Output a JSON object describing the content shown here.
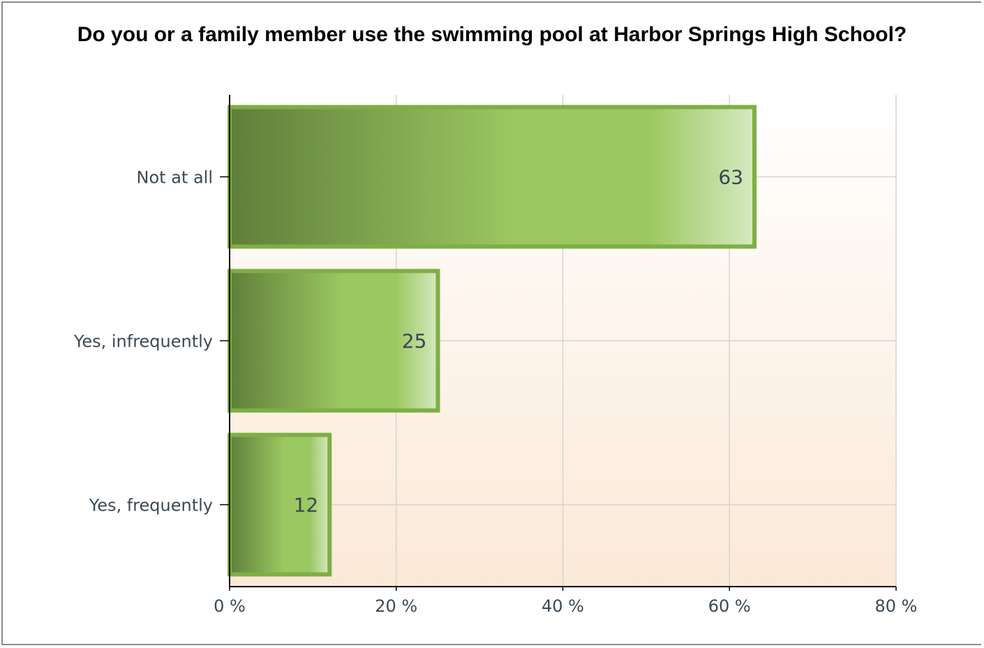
{
  "chart_data": {
    "type": "bar",
    "orientation": "horizontal",
    "title": "Do you or a family member use the swimming pool at Harbor Springs High School?",
    "categories": [
      "Not at all",
      "Yes, infrequently",
      "Yes, frequently"
    ],
    "values": [
      63,
      25,
      12
    ],
    "data_labels": [
      "63",
      "25",
      "12"
    ],
    "x_ticks": [
      "0 %",
      "20 %",
      "40 %",
      "60 %",
      "80 %"
    ],
    "x_tick_values": [
      0,
      20,
      40,
      60,
      80
    ],
    "xlim": [
      0,
      80
    ],
    "xlabel": "",
    "ylabel": "",
    "grid": true,
    "legend": "none",
    "colors": {
      "bar_dark": "#5f7f3a",
      "bar_mid": "#9cc862",
      "bar_light": "#d6e9c0",
      "bar_border": "#7fae45",
      "plot_bg_top": "#ffffff",
      "plot_bg_bottom": "#fbe9d7",
      "grid": "#d4d4d4",
      "axis": "#000000"
    }
  }
}
